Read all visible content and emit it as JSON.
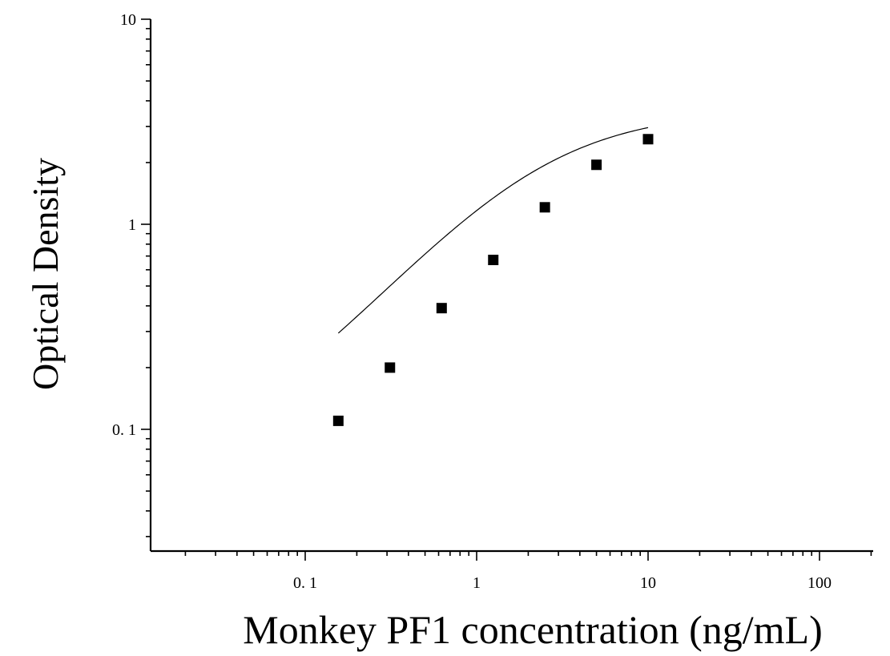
{
  "chart_data": {
    "type": "scatter",
    "xlabel": "Monkey PF1 concentration (ng/mL)",
    "ylabel": "Optical Density",
    "xscale": "log",
    "yscale": "log",
    "xlim": [
      0.0125,
      200
    ],
    "ylim": [
      0.028,
      10
    ],
    "x_ticks": [
      {
        "value": 0.1,
        "label": "0. 1"
      },
      {
        "value": 1,
        "label": "1"
      },
      {
        "value": 10,
        "label": "10"
      },
      {
        "value": 100,
        "label": "100"
      }
    ],
    "y_ticks": [
      {
        "value": 0.1,
        "label": "0. 1"
      },
      {
        "value": 1,
        "label": "1"
      },
      {
        "value": 10,
        "label": "10"
      }
    ],
    "grid": false,
    "series": [
      {
        "marker": "square",
        "color": "#000000",
        "x": [
          0.156,
          0.312,
          0.625,
          1.25,
          2.5,
          5,
          10
        ],
        "y": [
          0.11,
          0.2,
          0.39,
          0.67,
          1.21,
          1.95,
          2.6
        ]
      }
    ],
    "fit_curve": {
      "type": "4PL",
      "color": "#000000",
      "x_range": [
        0.156,
        10
      ]
    }
  }
}
